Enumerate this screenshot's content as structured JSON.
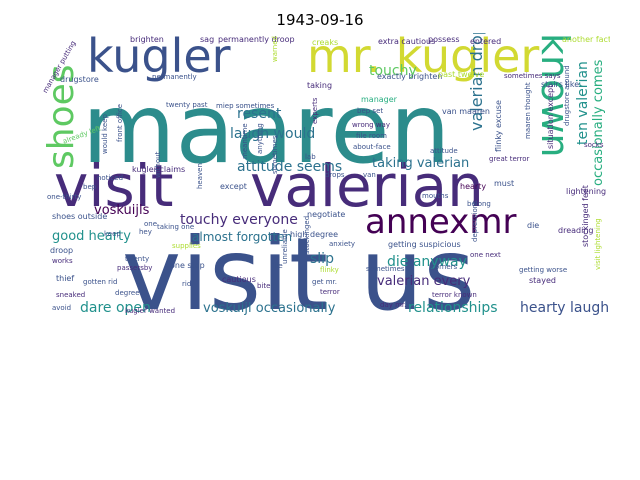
{
  "title": "1943-09-16",
  "palette": [
    "#440154",
    "#472c7a",
    "#3b528b",
    "#2c728e",
    "#21918c",
    "#28ae80",
    "#5ec962",
    "#addc30",
    "#fde725"
  ],
  "words": [
    {
      "text": "maaren",
      "color": "#2c8c8c"
    },
    {
      "text": "visit us",
      "color": "#3b528b"
    },
    {
      "text": "visit",
      "color": "#472c7a"
    },
    {
      "text": "valerian",
      "color": "#472c7a"
    },
    {
      "text": "kugler",
      "color": "#3b528b"
    },
    {
      "text": "mr. kugler",
      "color": "#d2d932"
    },
    {
      "text": "known",
      "color": "#28ae80"
    },
    {
      "text": "shoes",
      "color": "#5ec962"
    },
    {
      "text": "annexmr",
      "color": "#440154"
    },
    {
      "text": "valerian drops",
      "color": "#2c728e"
    },
    {
      "text": "ten valerian",
      "color": "#21918c"
    },
    {
      "text": "occasionally comes",
      "color": "#28ae80"
    },
    {
      "text": "resent",
      "color": "#2c728e"
    },
    {
      "text": "touchy",
      "color": "#5ec962"
    },
    {
      "text": "laugh would",
      "color": "#2c728e"
    },
    {
      "text": "attitude seems",
      "color": "#2c728e"
    },
    {
      "text": "taking valerian",
      "color": "#2c728e"
    },
    {
      "text": "voskuijls",
      "color": "#440154"
    },
    {
      "text": "touchy everyone",
      "color": "#472c7a"
    },
    {
      "text": "good hearty",
      "color": "#21918c"
    },
    {
      "text": "almost forgotten",
      "color": "#2c728e"
    },
    {
      "text": "slip",
      "color": "#2c728e"
    },
    {
      "text": "die anyway",
      "color": "#21918c"
    },
    {
      "text": "valerian every",
      "color": "#472c7a"
    },
    {
      "text": "dare open",
      "color": "#21918c"
    },
    {
      "text": "voskuijl occasionally",
      "color": "#2c728e"
    },
    {
      "text": "relationships",
      "color": "#21918c"
    },
    {
      "text": "hearty laugh",
      "color": "#3b528b"
    },
    {
      "text": "drugstore",
      "color": "#3b528b"
    },
    {
      "text": "brighten",
      "color": "#472c7a"
    },
    {
      "text": "sag",
      "color": "#472c7a"
    },
    {
      "text": "permanently droop",
      "color": "#472c7a"
    },
    {
      "text": "creaks",
      "color": "#addc30"
    },
    {
      "text": "extra cautious",
      "color": "#472c7a"
    },
    {
      "text": "possess",
      "color": "#472c7a"
    },
    {
      "text": "entered",
      "color": "#472c7a"
    },
    {
      "text": "another fact",
      "color": "#addc30"
    },
    {
      "text": "permanently",
      "color": "#3b528b"
    },
    {
      "text": "exactly brighten",
      "color": "#3b528b"
    },
    {
      "text": "past twelve",
      "color": "#addc30"
    },
    {
      "text": "sometimes says",
      "color": "#472c7a"
    },
    {
      "text": "stairs like",
      "color": "#3b528b"
    },
    {
      "text": "manager putting",
      "color": "#472c7a"
    },
    {
      "text": "twenty past",
      "color": "#3b528b"
    },
    {
      "text": "miep sometimes",
      "color": "#3b528b"
    },
    {
      "text": "taking",
      "color": "#472c7a"
    },
    {
      "text": "manager",
      "color": "#28ae80"
    },
    {
      "text": "bep set",
      "color": "#3b528b"
    },
    {
      "text": "wrong way",
      "color": "#472c7a"
    },
    {
      "text": "file room",
      "color": "#3b528b"
    },
    {
      "text": "about-face",
      "color": "#3b528b"
    },
    {
      "text": "socks",
      "color": "#472c7a"
    },
    {
      "text": "already left",
      "color": "#5ec962"
    },
    {
      "text": "kugler claims",
      "color": "#472c7a"
    },
    {
      "text": "great terror",
      "color": "#472c7a"
    },
    {
      "text": "noticed",
      "color": "#3b528b"
    },
    {
      "text": "drops",
      "color": "#3b528b"
    },
    {
      "text": "van",
      "color": "#3b528b"
    },
    {
      "text": "bep",
      "color": "#3b528b"
    },
    {
      "text": "except",
      "color": "#3b528b"
    },
    {
      "text": "hearty",
      "color": "#440154"
    },
    {
      "text": "must",
      "color": "#3b528b"
    },
    {
      "text": "belong",
      "color": "#3b528b"
    },
    {
      "text": "lightening",
      "color": "#472c7a"
    },
    {
      "text": "shoes outside",
      "color": "#3b528b"
    },
    {
      "text": "negotiate",
      "color": "#3b528b"
    },
    {
      "text": "die",
      "color": "#3b528b"
    },
    {
      "text": "dreading",
      "color": "#472c7a"
    },
    {
      "text": "anxiety",
      "color": "#3b528b"
    },
    {
      "text": "getting suspicious",
      "color": "#3b528b"
    },
    {
      "text": "one next",
      "color": "#472c7a"
    },
    {
      "text": "droop",
      "color": "#3b528b"
    },
    {
      "text": "supplies",
      "color": "#addc30"
    },
    {
      "text": "twenty",
      "color": "#3b528b"
    },
    {
      "text": "works",
      "color": "#472c7a"
    },
    {
      "text": "passersby",
      "color": "#472c7a"
    },
    {
      "text": "one step",
      "color": "#3b528b"
    },
    {
      "text": "file",
      "color": "#3b528b"
    },
    {
      "text": "flinky",
      "color": "#addc30"
    },
    {
      "text": "sometimes",
      "color": "#3b528b"
    },
    {
      "text": "corners",
      "color": "#3b528b"
    },
    {
      "text": "getting worse",
      "color": "#3b528b"
    },
    {
      "text": "thief",
      "color": "#3b528b"
    },
    {
      "text": "gotten rid",
      "color": "#3b528b"
    },
    {
      "text": "rid",
      "color": "#3b528b"
    },
    {
      "text": "cautious",
      "color": "#472c7a"
    },
    {
      "text": "get mr.",
      "color": "#3b528b"
    },
    {
      "text": "bite",
      "color": "#472c7a"
    },
    {
      "text": "terror",
      "color": "#472c7a"
    },
    {
      "text": "stayed",
      "color": "#472c7a"
    },
    {
      "text": "sneaked",
      "color": "#472c7a"
    },
    {
      "text": "degree",
      "color": "#3b528b"
    },
    {
      "text": "terror known",
      "color": "#472c7a"
    },
    {
      "text": "avoid",
      "color": "#3b528b"
    },
    {
      "text": "kugler wanted",
      "color": "#472c7a"
    },
    {
      "text": "day mr.",
      "color": "#472c7a"
    },
    {
      "text": "high degree",
      "color": "#3b528b"
    },
    {
      "text": "lab",
      "color": "#3b528b"
    },
    {
      "text": "one-thirty",
      "color": "#3b528b"
    },
    {
      "text": "taking one",
      "color": "#3b528b"
    },
    {
      "text": "van maaren",
      "color": "#3b528b"
    },
    {
      "text": "depressions",
      "color": "#3b528b"
    },
    {
      "text": "stockinged feet",
      "color": "#472c7a"
    },
    {
      "text": "mouths",
      "color": "#3b528b"
    },
    {
      "text": "attitude",
      "color": "#3b528b"
    },
    {
      "text": "sometimes",
      "color": "#3b528b"
    },
    {
      "text": "meantime",
      "color": "#3b528b"
    },
    {
      "text": "anything",
      "color": "#3b528b"
    },
    {
      "text": "experts",
      "color": "#472c7a"
    },
    {
      "text": "warned",
      "color": "#addc30"
    },
    {
      "text": "situation except",
      "color": "#472c7a"
    },
    {
      "text": "flinky excuse",
      "color": "#3b528b"
    },
    {
      "text": "drugstore around",
      "color": "#3b528b"
    },
    {
      "text": "maaren thought",
      "color": "#3b528b"
    },
    {
      "text": "heaven",
      "color": "#3b528b"
    },
    {
      "text": "would keep",
      "color": "#3b528b"
    },
    {
      "text": "front office",
      "color": "#3b528b"
    },
    {
      "text": "without",
      "color": "#3b528b"
    },
    {
      "text": "one",
      "color": "#3b528b"
    },
    {
      "text": "hey",
      "color": "#3b528b"
    },
    {
      "text": "keep",
      "color": "#3b528b"
    },
    {
      "text": "unreliable",
      "color": "#3b528b"
    },
    {
      "text": "stockinged",
      "color": "#3b528b"
    },
    {
      "text": "visit lightening",
      "color": "#addc30"
    }
  ]
}
